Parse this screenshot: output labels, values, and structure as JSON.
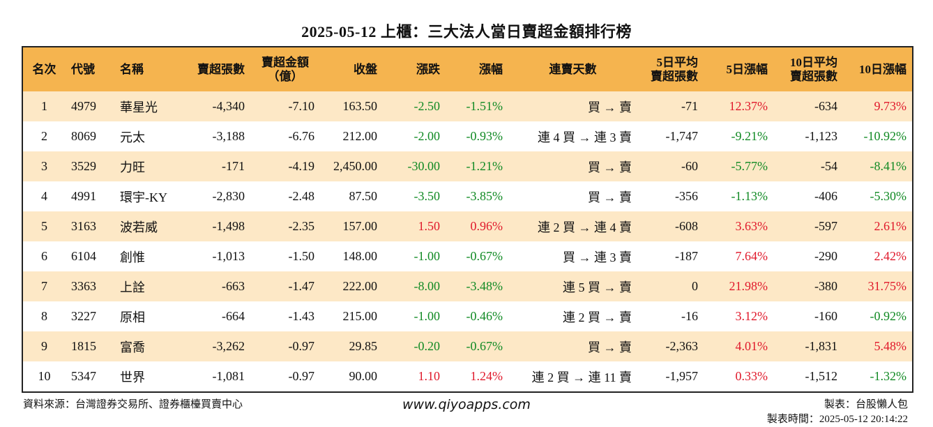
{
  "title": "2025-05-12 上櫃：三大法人當日賣超金額排行榜",
  "headers": {
    "rank": "名次",
    "code": "代號",
    "name": "名稱",
    "sell_shares": "賣超張數",
    "sell_amount_l1": "賣超金額",
    "sell_amount_l2": "（億）",
    "close": "收盤",
    "change": "漲跌",
    "pct": "漲幅",
    "streak": "連賣天數",
    "avg5_l1": "5日平均",
    "avg5_l2": "賣超張數",
    "pct5": "5日漲幅",
    "avg10_l1": "10日平均",
    "avg10_l2": "賣超張數",
    "pct10": "10日漲幅"
  },
  "rows": [
    {
      "rank": "1",
      "code": "4979",
      "name": "華星光",
      "sell_shares": "-4,340",
      "sell_amount": "-7.10",
      "close": "163.50",
      "change": "-2.50",
      "pct": "-1.51%",
      "streak": "買 → 賣",
      "avg5": "-71",
      "pct5": "12.37%",
      "avg10": "-634",
      "pct10": "9.73%"
    },
    {
      "rank": "2",
      "code": "8069",
      "name": "元太",
      "sell_shares": "-3,188",
      "sell_amount": "-6.76",
      "close": "212.00",
      "change": "-2.00",
      "pct": "-0.93%",
      "streak": "連 4 買 → 連 3 賣",
      "avg5": "-1,747",
      "pct5": "-9.21%",
      "avg10": "-1,123",
      "pct10": "-10.92%"
    },
    {
      "rank": "3",
      "code": "3529",
      "name": "力旺",
      "sell_shares": "-171",
      "sell_amount": "-4.19",
      "close": "2,450.00",
      "change": "-30.00",
      "pct": "-1.21%",
      "streak": "買 → 賣",
      "avg5": "-60",
      "pct5": "-5.77%",
      "avg10": "-54",
      "pct10": "-8.41%"
    },
    {
      "rank": "4",
      "code": "4991",
      "name": "環宇-KY",
      "sell_shares": "-2,830",
      "sell_amount": "-2.48",
      "close": "87.50",
      "change": "-3.50",
      "pct": "-3.85%",
      "streak": "買 → 賣",
      "avg5": "-356",
      "pct5": "-1.13%",
      "avg10": "-406",
      "pct10": "-5.30%"
    },
    {
      "rank": "5",
      "code": "3163",
      "name": "波若威",
      "sell_shares": "-1,498",
      "sell_amount": "-2.35",
      "close": "157.00",
      "change": "1.50",
      "pct": "0.96%",
      "streak": "連 2 買 → 連 4 賣",
      "avg5": "-608",
      "pct5": "3.63%",
      "avg10": "-597",
      "pct10": "2.61%"
    },
    {
      "rank": "6",
      "code": "6104",
      "name": "創惟",
      "sell_shares": "-1,013",
      "sell_amount": "-1.50",
      "close": "148.00",
      "change": "-1.00",
      "pct": "-0.67%",
      "streak": "買 → 連 3 賣",
      "avg5": "-187",
      "pct5": "7.64%",
      "avg10": "-290",
      "pct10": "2.42%"
    },
    {
      "rank": "7",
      "code": "3363",
      "name": "上詮",
      "sell_shares": "-663",
      "sell_amount": "-1.47",
      "close": "222.00",
      "change": "-8.00",
      "pct": "-3.48%",
      "streak": "連 5 買 → 賣",
      "avg5": "0",
      "pct5": "21.98%",
      "avg10": "-380",
      "pct10": "31.75%"
    },
    {
      "rank": "8",
      "code": "3227",
      "name": "原相",
      "sell_shares": "-664",
      "sell_amount": "-1.43",
      "close": "215.00",
      "change": "-1.00",
      "pct": "-0.46%",
      "streak": "連 2 買 → 賣",
      "avg5": "-16",
      "pct5": "3.12%",
      "avg10": "-160",
      "pct10": "-0.92%"
    },
    {
      "rank": "9",
      "code": "1815",
      "name": "富喬",
      "sell_shares": "-3,262",
      "sell_amount": "-0.97",
      "close": "29.85",
      "change": "-0.20",
      "pct": "-0.67%",
      "streak": "買 → 賣",
      "avg5": "-2,363",
      "pct5": "4.01%",
      "avg10": "-1,831",
      "pct10": "5.48%"
    },
    {
      "rank": "10",
      "code": "5347",
      "name": "世界",
      "sell_shares": "-1,081",
      "sell_amount": "-0.97",
      "close": "90.00",
      "change": "1.10",
      "pct": "1.24%",
      "streak": "連 2 買 → 連 11 賣",
      "avg5": "-1,957",
      "pct5": "0.33%",
      "avg10": "-1,512",
      "pct10": "-1.32%"
    }
  ],
  "footer": {
    "source": "資料來源：台灣證券交易所、證券櫃檯買賣中心",
    "website": "www.qiyoapps.com",
    "maker": "製表：台股懶人包",
    "made_time": "製表時間：2025-05-12 20:14:22"
  },
  "colors": {
    "header_bg": "#f5b44f",
    "row_alt_bg": "#fde8c6",
    "positive": "#e0192b",
    "negative": "#118a24"
  }
}
